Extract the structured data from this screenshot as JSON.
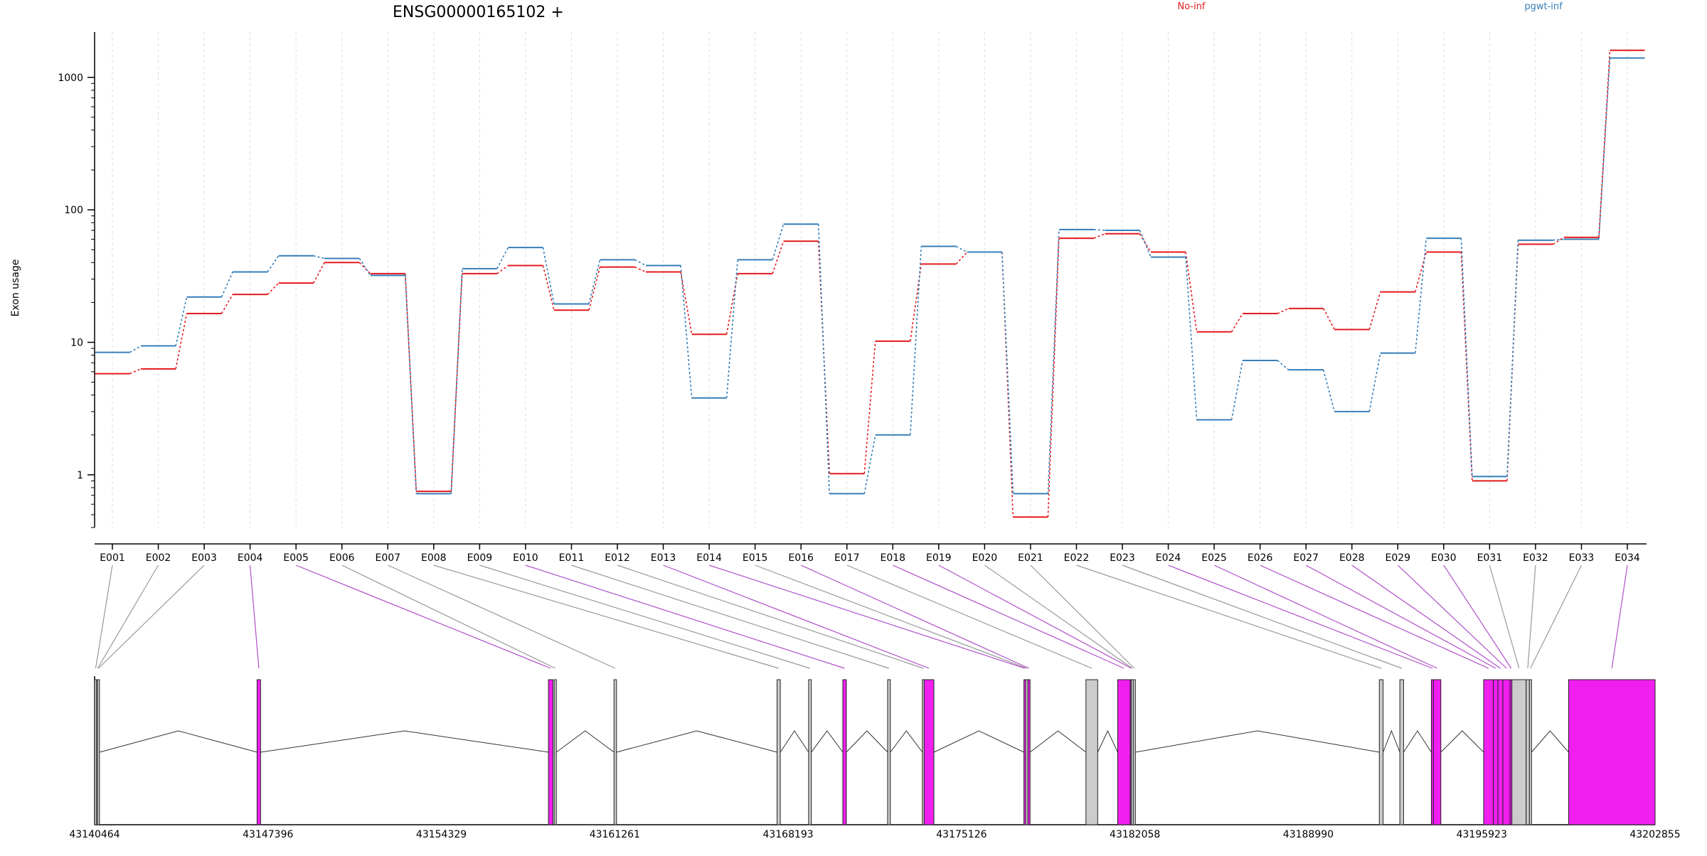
{
  "chart_data": {
    "type": "line",
    "title": "ENSG00000165102 +",
    "xlabel": "",
    "ylabel": "Exon usage",
    "y_scale": "log",
    "ylim": [
      0.4,
      2200
    ],
    "y_ticks": [
      1,
      10,
      100,
      1000
    ],
    "y_tick_labels": [
      "1",
      "10",
      "100",
      "1000"
    ],
    "grid": "vertical dashed lines at exon positions",
    "legend_placement": "top-right",
    "categories": [
      "E001",
      "E002",
      "E003",
      "E004",
      "E005",
      "E006",
      "E007",
      "E008",
      "E009",
      "E010",
      "E011",
      "E012",
      "E013",
      "E014",
      "E015",
      "E016",
      "E017",
      "E018",
      "E019",
      "E020",
      "E021",
      "E022",
      "E023",
      "E024",
      "E025",
      "E026",
      "E027",
      "E028",
      "E029",
      "E030",
      "E031",
      "E032",
      "E033",
      "E034"
    ],
    "series": [
      {
        "name": "No-inf",
        "color": "#e41a1c",
        "values": [
          5.8,
          6.3,
          16.5,
          23,
          28,
          40,
          33,
          0.75,
          33,
          38,
          17.5,
          37,
          34,
          11.5,
          33,
          58,
          1.02,
          10.2,
          39,
          48,
          0.48,
          61,
          66,
          48,
          12,
          16.5,
          18,
          12.5,
          24,
          48,
          0.9,
          55,
          62,
          1600
        ]
      },
      {
        "name": "pgwt-inf",
        "color": "#377eb8",
        "values": [
          8.4,
          9.4,
          22,
          34,
          45,
          43,
          32,
          0.72,
          36,
          52,
          19.5,
          42,
          38,
          3.8,
          42,
          78,
          0.72,
          2,
          53,
          48,
          0.72,
          71,
          70,
          44,
          2.6,
          7.3,
          6.2,
          3,
          8.3,
          61,
          0.97,
          59,
          60,
          1400
        ]
      }
    ],
    "gene_model": {
      "genomic_tick_labels": [
        "43140464",
        "43147396",
        "43154329",
        "43161261",
        "43168193",
        "43175126",
        "43182058",
        "43188990",
        "43195923",
        "43202855"
      ],
      "exons": [
        {
          "id": "E001",
          "start": 43140464,
          "end": 43140545,
          "highlight": false
        },
        {
          "id": "E002",
          "start": 43140545,
          "end": 43140575,
          "highlight": false
        },
        {
          "id": "E003",
          "start": 43140575,
          "end": 43140620,
          "highlight": false
        },
        {
          "id": "E004",
          "start": 43146960,
          "end": 43147100,
          "highlight": true
        },
        {
          "id": "E005",
          "start": 43158610,
          "end": 43158790,
          "highlight": true
        },
        {
          "id": "E006",
          "start": 43158840,
          "end": 43158900,
          "highlight": false
        },
        {
          "id": "E007",
          "start": 43161230,
          "end": 43161330,
          "highlight": false
        },
        {
          "id": "E008",
          "start": 43167750,
          "end": 43167880,
          "highlight": false
        },
        {
          "id": "E009",
          "start": 43169010,
          "end": 43169120,
          "highlight": false
        },
        {
          "id": "E010",
          "start": 43170380,
          "end": 43170520,
          "highlight": true
        },
        {
          "id": "E011",
          "start": 43172170,
          "end": 43172280,
          "highlight": false
        },
        {
          "id": "E012",
          "start": 43173560,
          "end": 43173630,
          "highlight": false
        },
        {
          "id": "E013",
          "start": 43173630,
          "end": 43174020,
          "highlight": true
        },
        {
          "id": "E014",
          "start": 43177620,
          "end": 43177690,
          "highlight": true
        },
        {
          "id": "E015",
          "start": 43177690,
          "end": 43177780,
          "highlight": false
        },
        {
          "id": "E016",
          "start": 43177780,
          "end": 43177830,
          "highlight": true
        },
        {
          "id": "E017",
          "start": 43180100,
          "end": 43180570,
          "highlight": false
        },
        {
          "id": "E018",
          "start": 43181370,
          "end": 43181870,
          "highlight": true
        },
        {
          "id": "E019",
          "start": 43181870,
          "end": 43181910,
          "highlight": true
        },
        {
          "id": "E020",
          "start": 43181910,
          "end": 43181990,
          "highlight": false
        },
        {
          "id": "E021",
          "start": 43181990,
          "end": 43182050,
          "highlight": false
        },
        {
          "id": "E022",
          "start": 43191830,
          "end": 43191980,
          "highlight": false
        },
        {
          "id": "E023",
          "start": 43192650,
          "end": 43192800,
          "highlight": false
        },
        {
          "id": "E024",
          "start": 43193910,
          "end": 43193990,
          "highlight": true
        },
        {
          "id": "E025",
          "start": 43193990,
          "end": 43194290,
          "highlight": true
        },
        {
          "id": "E026",
          "start": 43196000,
          "end": 43196390,
          "highlight": true
        },
        {
          "id": "E027",
          "start": 43196390,
          "end": 43196570,
          "highlight": true
        },
        {
          "id": "E028",
          "start": 43196570,
          "end": 43196770,
          "highlight": true
        },
        {
          "id": "E029",
          "start": 43196770,
          "end": 43197060,
          "highlight": true
        },
        {
          "id": "E030",
          "start": 43197060,
          "end": 43197130,
          "highlight": true
        },
        {
          "id": "E031",
          "start": 43197130,
          "end": 43197700,
          "highlight": false
        },
        {
          "id": "E032",
          "start": 43197700,
          "end": 43197830,
          "highlight": false
        },
        {
          "id": "E033",
          "start": 43197830,
          "end": 43197900,
          "highlight": false
        },
        {
          "id": "E034",
          "start": 43199400,
          "end": 43202855,
          "highlight": true
        }
      ]
    }
  },
  "colors": {
    "highlight_exon": "#f01ff0",
    "normal_exon": "#cccccc",
    "highlight_connector": "#b04fc8",
    "normal_connector": "#999999",
    "axis": "#000000",
    "grid": "#dcdcf0"
  }
}
